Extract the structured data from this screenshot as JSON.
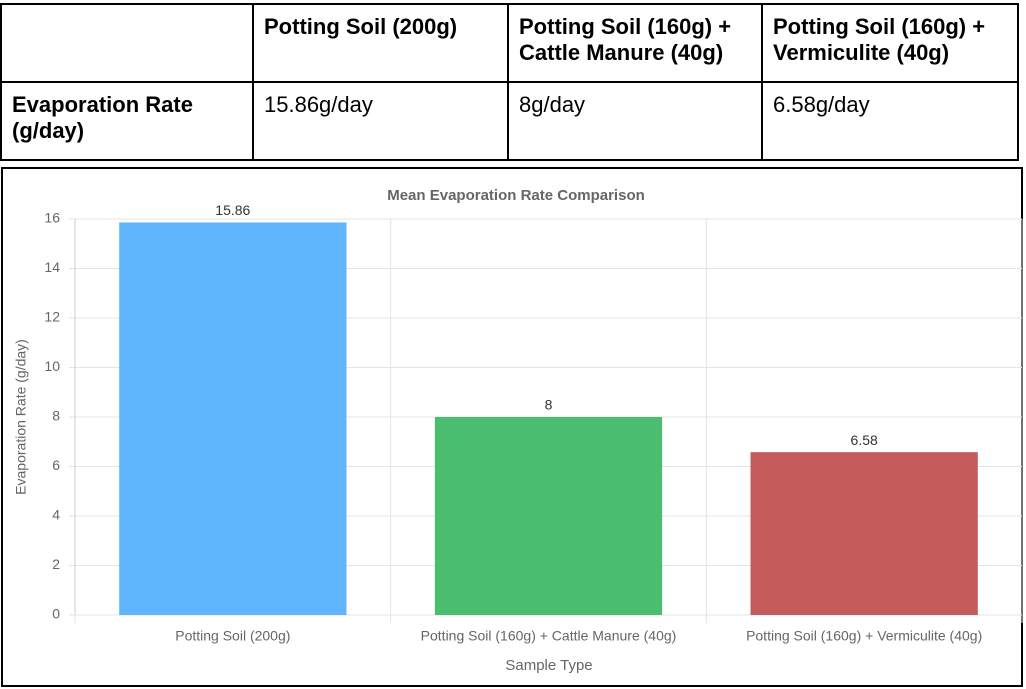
{
  "table": {
    "columns": [
      "Potting Soil (200g)",
      "Potting Soil (160g) + Cattle Manure (40g)",
      "Potting Soil (160g) + Vermiculite (40g)"
    ],
    "rows": [
      {
        "label": "Evaporation Rate (g/day)",
        "cells": [
          "15.86g/day",
          "8g/day",
          "6.58g/day"
        ]
      }
    ]
  },
  "chart_data": {
    "type": "bar",
    "title": "Mean Evaporation Rate Comparison",
    "x_label": "Sample Type",
    "y_label": "Evaporation Rate (g/day)",
    "categories": [
      "Potting Soil (200g)",
      "Potting Soil (160g) + Cattle Manure (40g)",
      "Potting Soil (160g) + Vermiculite (40g)"
    ],
    "values": [
      15.86,
      8,
      6.58
    ],
    "colors": [
      "#5fb6fd",
      "#4bbd6e",
      "#c55a5a"
    ],
    "ylim": [
      0,
      16
    ],
    "yticks": [
      0,
      2,
      4,
      6,
      8,
      10,
      12,
      14,
      16
    ],
    "grid": true
  }
}
